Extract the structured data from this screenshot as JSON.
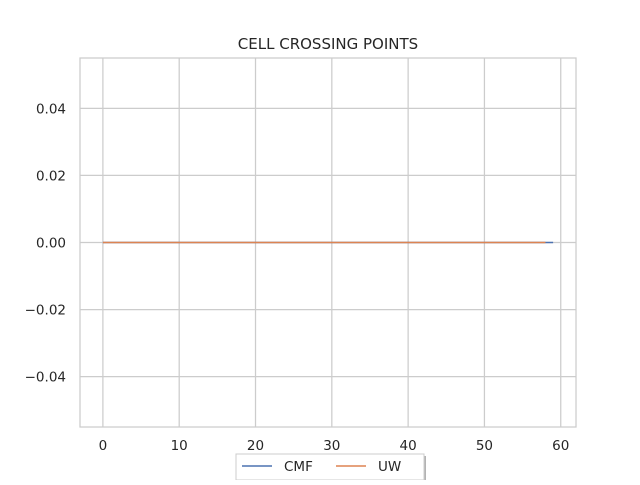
{
  "chart_data": {
    "type": "line",
    "title": "CELL CROSSING POINTS",
    "xlabel": "",
    "ylabel": "",
    "xlim": [
      -3,
      62
    ],
    "ylim": [
      -0.055,
      0.055
    ],
    "xticks": [
      0,
      10,
      20,
      30,
      40,
      50,
      60
    ],
    "yticks": [
      0.04,
      0.02,
      0.0,
      -0.02,
      -0.04
    ],
    "ytick_labels": [
      "0.04",
      "0.02",
      "0.00",
      "−0.02",
      "−0.04"
    ],
    "grid": true,
    "legend": {
      "placement": "bottom-center",
      "columns": 2
    },
    "series": [
      {
        "name": "CMF",
        "color": "#4c72b0",
        "x": [
          0,
          59
        ],
        "y": [
          0,
          0
        ]
      },
      {
        "name": "UW",
        "color": "#dd8452",
        "x": [
          0,
          58
        ],
        "y": [
          0,
          0
        ]
      }
    ]
  }
}
